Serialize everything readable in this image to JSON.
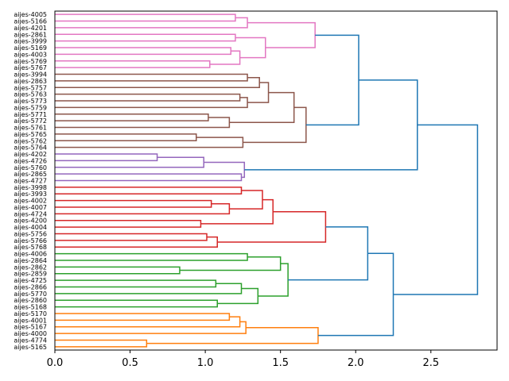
{
  "chart_data": {
    "type": "dendrogram",
    "orientation": "horizontal",
    "title": "",
    "xlabel": "",
    "ylabel": "",
    "xlim": [
      0,
      2.94
    ],
    "xticks": [
      0.0,
      0.5,
      1.0,
      1.5,
      2.0,
      2.5
    ],
    "xtick_labels": [
      "0.0",
      "0.5",
      "1.0",
      "1.5",
      "2.0",
      "2.5"
    ],
    "colors": {
      "pink": "#e377c2",
      "brown": "#8c564b",
      "purple": "#9467bd",
      "red": "#d62728",
      "green": "#2ca02c",
      "orange": "#ff7f0e",
      "blue": "#1f77b4"
    },
    "leaves": [
      "aijes-4005",
      "aijes-5166",
      "aijes-4201",
      "aijes-2861",
      "aijes-3999",
      "aijes-5169",
      "aijes-4003",
      "aijes-5769",
      "aijes-5767",
      "aijes-3994",
      "aijes-2863",
      "aijes-5757",
      "aijes-5763",
      "aijes-5773",
      "aijes-5759",
      "aijes-5771",
      "aijes-5772",
      "aijes-5761",
      "aijes-5765",
      "aijes-5762",
      "aijes-5764",
      "aijes-4202",
      "aijes-4726",
      "aijes-5760",
      "aijes-2865",
      "aijes-4727",
      "aijes-3998",
      "aijes-3993",
      "aijes-4002",
      "aijes-4007",
      "aijes-4724",
      "aijes-4200",
      "aijes-4004",
      "aijes-5756",
      "aijes-5766",
      "aijes-5768",
      "aijes-4006",
      "aijes-2864",
      "aijes-2862",
      "aijes-2859",
      "aijes-4725",
      "aijes-2866",
      "aijes-5770",
      "aijes-2860",
      "aijes-5168",
      "aijes-5170",
      "aijes-4001",
      "aijes-5167",
      "aijes-4000",
      "aijes-4774",
      "aijes-5165"
    ],
    "merges": [
      {
        "id": "P1",
        "children": [
          0,
          1
        ],
        "height": 1.2,
        "color": "pink"
      },
      {
        "id": "P2",
        "children": [
          "P1",
          2
        ],
        "height": 1.28,
        "color": "pink"
      },
      {
        "id": "P3",
        "children": [
          3,
          4
        ],
        "height": 1.2,
        "color": "pink"
      },
      {
        "id": "P4",
        "children": [
          5,
          6
        ],
        "height": 1.17,
        "color": "pink"
      },
      {
        "id": "P5",
        "children": [
          7,
          8
        ],
        "height": 1.03,
        "color": "pink"
      },
      {
        "id": "P6",
        "children": [
          "P4",
          "P5"
        ],
        "height": 1.23,
        "color": "pink"
      },
      {
        "id": "P7",
        "children": [
          "P3",
          "P6"
        ],
        "height": 1.4,
        "color": "pink"
      },
      {
        "id": "P8",
        "children": [
          "P2",
          "P7"
        ],
        "height": 1.73,
        "color": "pink"
      },
      {
        "id": "B1",
        "children": [
          9,
          10
        ],
        "height": 1.28,
        "color": "brown"
      },
      {
        "id": "B2",
        "children": [
          "B1",
          11
        ],
        "height": 1.36,
        "color": "brown"
      },
      {
        "id": "B3",
        "children": [
          12,
          13
        ],
        "height": 1.23,
        "color": "brown"
      },
      {
        "id": "B4",
        "children": [
          "B3",
          14
        ],
        "height": 1.28,
        "color": "brown"
      },
      {
        "id": "B5",
        "children": [
          "B2",
          "B4"
        ],
        "height": 1.42,
        "color": "brown"
      },
      {
        "id": "B6",
        "children": [
          15,
          16
        ],
        "height": 1.02,
        "color": "brown"
      },
      {
        "id": "B7",
        "children": [
          "B6",
          17
        ],
        "height": 1.16,
        "color": "brown"
      },
      {
        "id": "B8",
        "children": [
          "B5",
          "B7"
        ],
        "height": 1.59,
        "color": "brown"
      },
      {
        "id": "B9",
        "children": [
          18,
          19
        ],
        "height": 0.94,
        "color": "brown"
      },
      {
        "id": "B10",
        "children": [
          "B9",
          20
        ],
        "height": 1.25,
        "color": "brown"
      },
      {
        "id": "B11",
        "children": [
          "B8",
          "B10"
        ],
        "height": 1.67,
        "color": "brown"
      },
      {
        "id": "V1",
        "children": [
          21,
          22
        ],
        "height": 0.68,
        "color": "purple"
      },
      {
        "id": "V2",
        "children": [
          "V1",
          23
        ],
        "height": 0.99,
        "color": "purple"
      },
      {
        "id": "V3",
        "children": [
          24,
          25
        ],
        "height": 1.24,
        "color": "purple"
      },
      {
        "id": "V4",
        "children": [
          "V2",
          "V3"
        ],
        "height": 1.26,
        "color": "purple"
      },
      {
        "id": "R1",
        "children": [
          26,
          27
        ],
        "height": 1.24,
        "color": "red"
      },
      {
        "id": "R2",
        "children": [
          28,
          29
        ],
        "height": 1.04,
        "color": "red"
      },
      {
        "id": "R3",
        "children": [
          "R2",
          30
        ],
        "height": 1.16,
        "color": "red"
      },
      {
        "id": "R4",
        "children": [
          "R1",
          "R3"
        ],
        "height": 1.38,
        "color": "red"
      },
      {
        "id": "R5",
        "children": [
          31,
          32
        ],
        "height": 0.97,
        "color": "red"
      },
      {
        "id": "R6",
        "children": [
          "R4",
          "R5"
        ],
        "height": 1.45,
        "color": "red"
      },
      {
        "id": "R7",
        "children": [
          33,
          34
        ],
        "height": 1.01,
        "color": "red"
      },
      {
        "id": "R8",
        "children": [
          "R7",
          35
        ],
        "height": 1.08,
        "color": "red"
      },
      {
        "id": "R9",
        "children": [
          "R6",
          "R8"
        ],
        "height": 1.8,
        "color": "red"
      },
      {
        "id": "G1",
        "children": [
          36,
          37
        ],
        "height": 1.28,
        "color": "green"
      },
      {
        "id": "G2",
        "children": [
          38,
          39
        ],
        "height": 0.83,
        "color": "green"
      },
      {
        "id": "G3",
        "children": [
          "G1",
          "G2"
        ],
        "height": 1.5,
        "color": "green"
      },
      {
        "id": "G4",
        "children": [
          40,
          41
        ],
        "height": 1.07,
        "color": "green"
      },
      {
        "id": "G5",
        "children": [
          "G4",
          42
        ],
        "height": 1.24,
        "color": "green"
      },
      {
        "id": "G6",
        "children": [
          43,
          44
        ],
        "height": 1.08,
        "color": "green"
      },
      {
        "id": "G7",
        "children": [
          "G5",
          "G6"
        ],
        "height": 1.35,
        "color": "green"
      },
      {
        "id": "G8",
        "children": [
          "G3",
          "G7"
        ],
        "height": 1.55,
        "color": "green"
      },
      {
        "id": "O1",
        "children": [
          45,
          46
        ],
        "height": 1.16,
        "color": "orange"
      },
      {
        "id": "O2",
        "children": [
          "O1",
          47
        ],
        "height": 1.23,
        "color": "orange"
      },
      {
        "id": "O3",
        "children": [
          "O2",
          48
        ],
        "height": 1.27,
        "color": "orange"
      },
      {
        "id": "O4",
        "children": [
          49,
          50
        ],
        "height": 0.61,
        "color": "orange"
      },
      {
        "id": "O5",
        "children": [
          "O3",
          "O4"
        ],
        "height": 1.75,
        "color": "orange"
      },
      {
        "id": "T1",
        "children": [
          "P8",
          "B11"
        ],
        "height": 2.02,
        "color": "blue"
      },
      {
        "id": "T2",
        "children": [
          "T1",
          "V4"
        ],
        "height": 2.41,
        "color": "blue"
      },
      {
        "id": "T3",
        "children": [
          "R9",
          "G8"
        ],
        "height": 2.08,
        "color": "blue"
      },
      {
        "id": "T4",
        "children": [
          "T3",
          "O5"
        ],
        "height": 2.25,
        "color": "blue"
      },
      {
        "id": "T5",
        "children": [
          "T2",
          "T4"
        ],
        "height": 2.81,
        "color": "blue"
      }
    ]
  }
}
